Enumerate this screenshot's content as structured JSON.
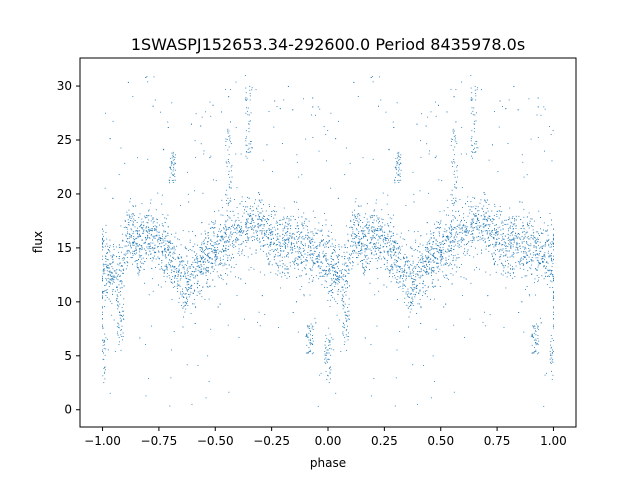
{
  "chart_data": {
    "type": "scatter",
    "title": "1SWASPJ152653.34-292600.0 Period 8435978.0s",
    "xlabel": "phase",
    "ylabel": "flux",
    "xlim": [
      -1.1,
      1.1
    ],
    "ylim": [
      -1.6,
      32.6
    ],
    "xticks": [
      "−1.00",
      "−0.75",
      "−0.50",
      "−0.25",
      "0.00",
      "0.25",
      "0.50",
      "0.75",
      "1.00"
    ],
    "yticks": [
      "0",
      "5",
      "10",
      "15",
      "20",
      "25",
      "30"
    ],
    "grid": false,
    "legend": "none",
    "marker_color": "#1f77b4",
    "base_profile": {
      "phase": [
        0.0,
        0.02,
        0.05,
        0.08,
        0.1,
        0.13,
        0.16,
        0.2,
        0.25,
        0.3,
        0.33,
        0.36,
        0.4,
        0.45,
        0.5,
        0.55,
        0.6,
        0.65,
        0.7,
        0.75,
        0.8,
        0.85,
        0.9,
        0.95,
        1.0
      ],
      "flux": [
        14.0,
        13.0,
        12.5,
        13.0,
        15.0,
        16.5,
        15.5,
        16.0,
        16.0,
        14.5,
        12.5,
        12.0,
        12.5,
        14.0,
        15.0,
        15.5,
        16.5,
        17.5,
        17.0,
        16.0,
        15.0,
        15.5,
        15.0,
        14.5,
        14.0
      ]
    },
    "features": [
      {
        "phase": 0.0,
        "flux": 5.0,
        "label": "dip"
      },
      {
        "phase": 0.08,
        "flux": 8.0,
        "label": "dip"
      },
      {
        "phase": 0.65,
        "flux": 30.0,
        "label": "peak"
      },
      {
        "phase": 0.56,
        "flux": 26.0,
        "label": "peak"
      },
      {
        "phase": 0.31,
        "flux": 24.0,
        "label": "clump"
      },
      {
        "phase": 0.92,
        "flux": 8.0,
        "label": "clump"
      }
    ],
    "series_note_points_per_cycle": 2600
  }
}
